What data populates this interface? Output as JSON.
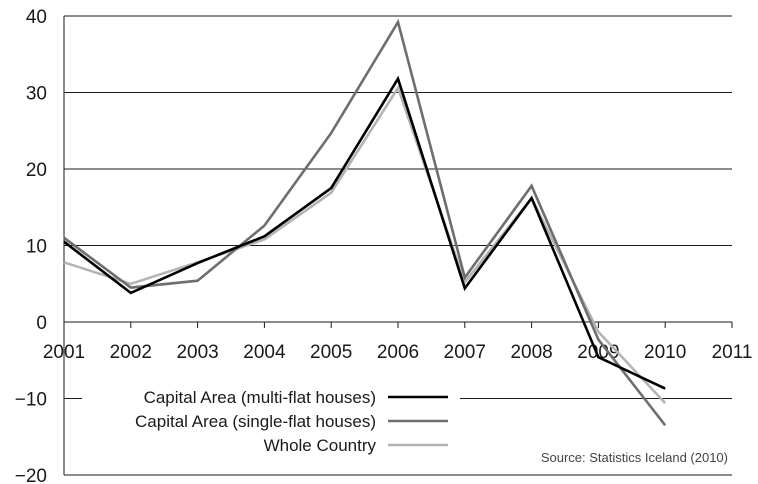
{
  "chart_data": {
    "type": "line",
    "title": "",
    "xlabel": "",
    "ylabel": "",
    "x": [
      2001,
      2002,
      2003,
      2004,
      2005,
      2006,
      2007,
      2008,
      2009,
      2010
    ],
    "x_ticks": [
      "2001",
      "2002",
      "2003",
      "2004",
      "2005",
      "2006",
      "2007",
      "2008",
      "2009",
      "2010",
      "2011"
    ],
    "xlim": [
      2001,
      2011
    ],
    "y_ticks": [
      "40",
      "30",
      "20",
      "10",
      "0",
      "−10",
      "−20"
    ],
    "ylim": [
      -20,
      40
    ],
    "grid": "horizontal",
    "legend_position": "bottom-left",
    "series": [
      {
        "name": "Capital Area (multi-flat houses)",
        "color": "#000000",
        "values": [
          10.5,
          3.8,
          7.7,
          11.2,
          17.5,
          31.8,
          4.4,
          16.2,
          -4.6,
          -8.7
        ]
      },
      {
        "name": "Capital Area (single-flat houses)",
        "color": "#6e6e6e",
        "values": [
          11.0,
          4.5,
          5.4,
          12.6,
          24.7,
          39.2,
          5.8,
          17.8,
          -2.3,
          -13.5
        ]
      },
      {
        "name": "Whole Country",
        "color": "#b4b4b4",
        "values": [
          7.8,
          5.0,
          7.8,
          10.8,
          16.9,
          30.6,
          5.2,
          16.2,
          -1.3,
          -10.6
        ]
      }
    ],
    "source": "Source: Statistics Iceland (2010)"
  }
}
